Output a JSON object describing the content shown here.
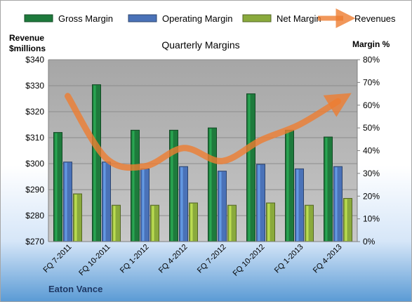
{
  "chart_data": {
    "type": "bar",
    "title": "Quarterly Margins",
    "company": "Eaton Vance",
    "categories": [
      "FQ 7-2011",
      "FQ 10-2011",
      "FQ 1-2012",
      "FQ 4-2012",
      "FQ 7-2012",
      "FQ 10-2012",
      "FQ 1-2013",
      "FQ 4-2013"
    ],
    "left_axis": {
      "label_line1": "Revenue",
      "label_line2": "$millions",
      "min": 270,
      "max": 340,
      "step": 10,
      "tick_labels": [
        "$270",
        "$280",
        "$290",
        "$300",
        "$310",
        "$320",
        "$330",
        "$340"
      ]
    },
    "right_axis": {
      "label": "Margin %",
      "min": 0,
      "max": 80,
      "step": 10,
      "tick_labels": [
        "0%",
        "10%",
        "20%",
        "30%",
        "40%",
        "50%",
        "60%",
        "70%",
        "80%"
      ]
    },
    "legend_position": "top",
    "grid": true,
    "series": [
      {
        "name": "Gross Margin",
        "kind": "bar",
        "axis": "right",
        "color": "#1e7a3c",
        "values": [
          48,
          69,
          49,
          49,
          50,
          65,
          49,
          46
        ]
      },
      {
        "name": "Operating Margin",
        "kind": "bar",
        "axis": "right",
        "color": "#4a72b8",
        "values": [
          35,
          35,
          32,
          33,
          31,
          34,
          32,
          33
        ]
      },
      {
        "name": "Net Margin",
        "kind": "bar",
        "axis": "right",
        "color": "#8aaa3c",
        "values": [
          21,
          16,
          16,
          17,
          16,
          17,
          16,
          19
        ]
      },
      {
        "name": "Revenues",
        "kind": "line",
        "axis": "left",
        "color": "#ed7d31",
        "values": [
          326,
          302,
          299,
          306,
          301,
          309,
          315,
          324
        ]
      }
    ]
  }
}
